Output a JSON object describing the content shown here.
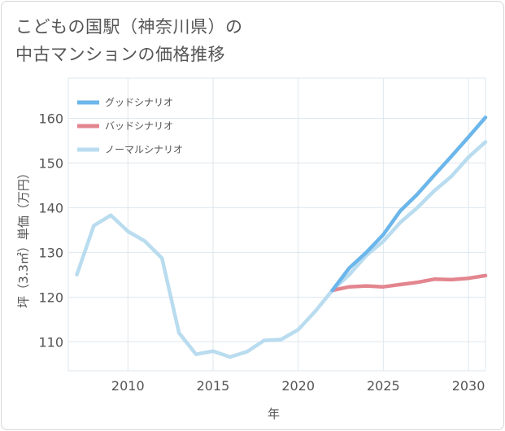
{
  "title": "こどもの国駅（神奈川県）の\n中古マンションの価格推移",
  "chart_data": {
    "type": "line",
    "xlabel": "年",
    "ylabel": "坪（3.3㎡）単価（万円）",
    "xlim": [
      2006.5,
      2031
    ],
    "ylim": [
      103.5,
      169
    ],
    "xticks": [
      2010,
      2015,
      2020,
      2025,
      2030
    ],
    "yticks": [
      110,
      120,
      130,
      140,
      150,
      160
    ],
    "grid": true,
    "legend_position": "top-left",
    "series": [
      {
        "name": "グッドシナリオ",
        "color": "#6bb6ea",
        "x": [
          2022,
          2023,
          2024,
          2025,
          2026,
          2027,
          2028,
          2029,
          2030,
          2031
        ],
        "y": [
          121.5,
          126.5,
          130,
          134,
          139.3,
          143,
          147.3,
          151.5,
          155.8,
          160.2
        ]
      },
      {
        "name": "バッドシナリオ",
        "color": "#e3858f",
        "x": [
          2022,
          2023,
          2024,
          2025,
          2026,
          2027,
          2028,
          2029,
          2030,
          2031
        ],
        "y": [
          121.5,
          122.3,
          122.5,
          122.3,
          122.8,
          123.3,
          124,
          123.9,
          124.2,
          124.8
        ]
      },
      {
        "name": "ノーマルシナリオ",
        "color": "#b9dcef",
        "x": [
          2007,
          2008,
          2009,
          2010,
          2011,
          2012,
          2013,
          2014,
          2015,
          2016,
          2017,
          2018,
          2019,
          2020,
          2021,
          2022,
          2023,
          2024,
          2025,
          2026,
          2027,
          2028,
          2029,
          2030,
          2031
        ],
        "y": [
          125,
          136,
          138.3,
          134.7,
          132.5,
          128.7,
          112,
          107.2,
          107.9,
          106.6,
          107.8,
          110.3,
          110.5,
          112.7,
          116.8,
          121.5,
          125,
          129.3,
          132.5,
          136.7,
          140,
          143.8,
          147,
          151.3,
          154.7
        ]
      }
    ]
  }
}
